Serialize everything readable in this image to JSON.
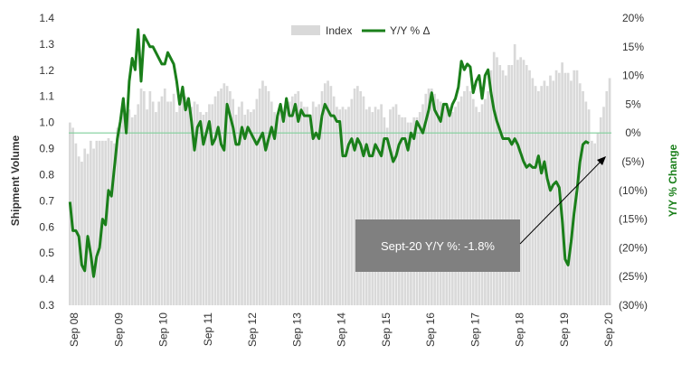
{
  "chart_data": {
    "type": "bar+line",
    "xlabel": "",
    "ylabel_left": "Shipment Volume",
    "ylabel_right": "Y/Y % Change",
    "left_ylim": [
      0.3,
      1.4
    ],
    "left_ticks": [
      "1.4",
      "1.3",
      "1.2",
      "1.1",
      "1.0",
      "0.9",
      "0.8",
      "0.7",
      "0.6",
      "0.5",
      "0.4",
      "0.3"
    ],
    "right_ylim": [
      -30,
      20
    ],
    "right_ticks": [
      "20%",
      "15%",
      "10%",
      "5%",
      "0%",
      "(5%)",
      "(10%)",
      "(15%)",
      "(20%)",
      "(25%)",
      "(30%)"
    ],
    "x_tick_labels": [
      "Sep 08",
      "Sep 09",
      "Sep 10",
      "Sep 11",
      "Sep 12",
      "Sep 13",
      "Sep 14",
      "Sep 15",
      "Sep 16",
      "Sep 17",
      "Sep 18",
      "Sep 19",
      "Sep 20"
    ],
    "reference_line_value": 0.96,
    "series": [
      {
        "name": "Index",
        "kind": "bar",
        "axis": "left",
        "color": "#d9d9d9",
        "values": [
          1.0,
          0.98,
          0.92,
          0.87,
          0.85,
          0.9,
          0.88,
          0.93,
          0.9,
          0.93,
          0.93,
          0.93,
          0.93,
          0.94,
          0.93,
          0.92,
          0.98,
          0.99,
          1.05,
          1.0,
          1.05,
          1.02,
          1.03,
          1.07,
          1.13,
          1.12,
          1.05,
          1.12,
          1.08,
          1.04,
          1.08,
          1.1,
          1.13,
          1.08,
          1.08,
          1.11,
          1.04,
          1.08,
          1.12,
          1.1,
          1.08,
          1.06,
          1.08,
          1.07,
          1.04,
          1.03,
          1.04,
          1.07,
          1.07,
          1.1,
          1.12,
          1.13,
          1.15,
          1.14,
          1.12,
          1.09,
          1.03,
          1.06,
          1.08,
          1.03,
          1.05,
          1.04,
          1.05,
          1.09,
          1.13,
          1.16,
          1.14,
          1.12,
          1.08,
          1.04,
          1.02,
          1.05,
          1.03,
          1.07,
          1.08,
          1.1,
          1.11,
          1.12,
          1.08,
          1.06,
          1.06,
          1.03,
          1.08,
          1.06,
          1.07,
          1.12,
          1.15,
          1.16,
          1.14,
          1.1,
          1.06,
          1.05,
          1.06,
          1.05,
          1.06,
          1.09,
          1.13,
          1.14,
          1.12,
          1.1,
          1.05,
          1.06,
          1.04,
          1.06,
          1.05,
          1.07,
          1.02,
          0.98,
          1.05,
          1.06,
          1.07,
          1.03,
          1.02,
          1.02,
          1.0,
          1.0,
          1.02,
          1.02,
          1.04,
          1.07,
          1.11,
          1.13,
          1.13,
          1.11,
          1.09,
          1.08,
          1.07,
          1.06,
          1.06,
          1.04,
          1.06,
          1.08,
          1.1,
          1.12,
          1.14,
          1.12,
          1.09,
          1.06,
          1.04,
          1.07,
          1.09,
          1.12,
          1.2,
          1.27,
          1.25,
          1.22,
          1.2,
          1.18,
          1.22,
          1.22,
          1.3,
          1.24,
          1.25,
          1.24,
          1.22,
          1.2,
          1.17,
          1.14,
          1.12,
          1.14,
          1.16,
          1.14,
          1.18,
          1.16,
          1.2,
          1.19,
          1.23,
          1.19,
          1.19,
          1.16,
          1.2,
          1.2,
          1.15,
          1.12,
          1.08,
          1.05,
          0.93,
          0.92,
          0.96,
          1.02,
          1.06,
          1.12,
          1.17
        ]
      },
      {
        "name": "Y/Y % Δ",
        "kind": "line",
        "axis": "right",
        "color": "#1a7f1a",
        "values": [
          -12.0,
          -17.0,
          -17.0,
          -18.0,
          -23.0,
          -24.0,
          -18.0,
          -21.0,
          -25.0,
          -21.5,
          -20.0,
          -15.0,
          -16.0,
          -10.0,
          -11.0,
          -6.0,
          -1.0,
          2.0,
          6.0,
          0.0,
          9.0,
          13.0,
          11.0,
          18.0,
          9.0,
          17.0,
          16.0,
          15.0,
          15.0,
          14.0,
          13.0,
          12.0,
          12.0,
          14.0,
          13.0,
          12.0,
          9.0,
          5.0,
          8.0,
          4.0,
          6.0,
          2.0,
          -3.0,
          1.0,
          2.0,
          -2.0,
          0.0,
          2.0,
          -2.0,
          -1.0,
          1.0,
          -2.0,
          -3.0,
          5.0,
          3.0,
          1.0,
          -2.0,
          -2.0,
          1.0,
          -1.0,
          1.0,
          0.0,
          -1.0,
          -2.0,
          -1.0,
          0.0,
          -3.0,
          -1.0,
          1.0,
          -1.0,
          3.0,
          5.0,
          2.0,
          6.0,
          3.0,
          3.0,
          5.0,
          2.0,
          4.0,
          3.0,
          3.0,
          3.0,
          -1.0,
          0.0,
          -1.0,
          3.0,
          5.0,
          4.0,
          3.0,
          3.0,
          2.0,
          2.0,
          -4.0,
          -4.0,
          -2.0,
          -1.0,
          -3.0,
          -1.0,
          -2.0,
          -4.0,
          -2.0,
          -4.0,
          -4.0,
          -2.0,
          -3.0,
          -4.0,
          -1.0,
          -1.0,
          -3.0,
          -5.0,
          -4.0,
          -2.0,
          -1.0,
          -1.0,
          -3.0,
          0.0,
          -1.0,
          2.0,
          1.0,
          0.0,
          2.0,
          4.0,
          7.0,
          4.0,
          3.0,
          2.0,
          5.0,
          5.0,
          3.0,
          5.0,
          6.0,
          8.0,
          12.5,
          11.0,
          12.0,
          11.5,
          7.0,
          9.0,
          10.0,
          6.0,
          10.0,
          11.0,
          7.0,
          4.0,
          2.0,
          0.5,
          -1.0,
          -1.0,
          -1.0,
          -2.0,
          -1.0,
          -2.0,
          -3.5,
          -5.0,
          -6.0,
          -5.5,
          -6.0,
          -6.0,
          -4.0,
          -7.0,
          -5.0,
          -8.0,
          -10.0,
          -9.0,
          -8.5,
          -9.5,
          -15.0,
          -22.0,
          -23.0,
          -19.0,
          -14.0,
          -10.0,
          -5.0,
          -2.0,
          -1.5,
          -1.8
        ]
      }
    ],
    "annotation": {
      "text": "Sept-20 Y/Y %: -1.8%"
    }
  },
  "legend": {
    "index_label": "Index",
    "yoy_label": "Y/Y % Δ"
  },
  "colors": {
    "bar": "#d9d9d9",
    "line": "#1a7f1a",
    "reference_line": "#7fcf9a",
    "callout_bg": "#808080"
  }
}
